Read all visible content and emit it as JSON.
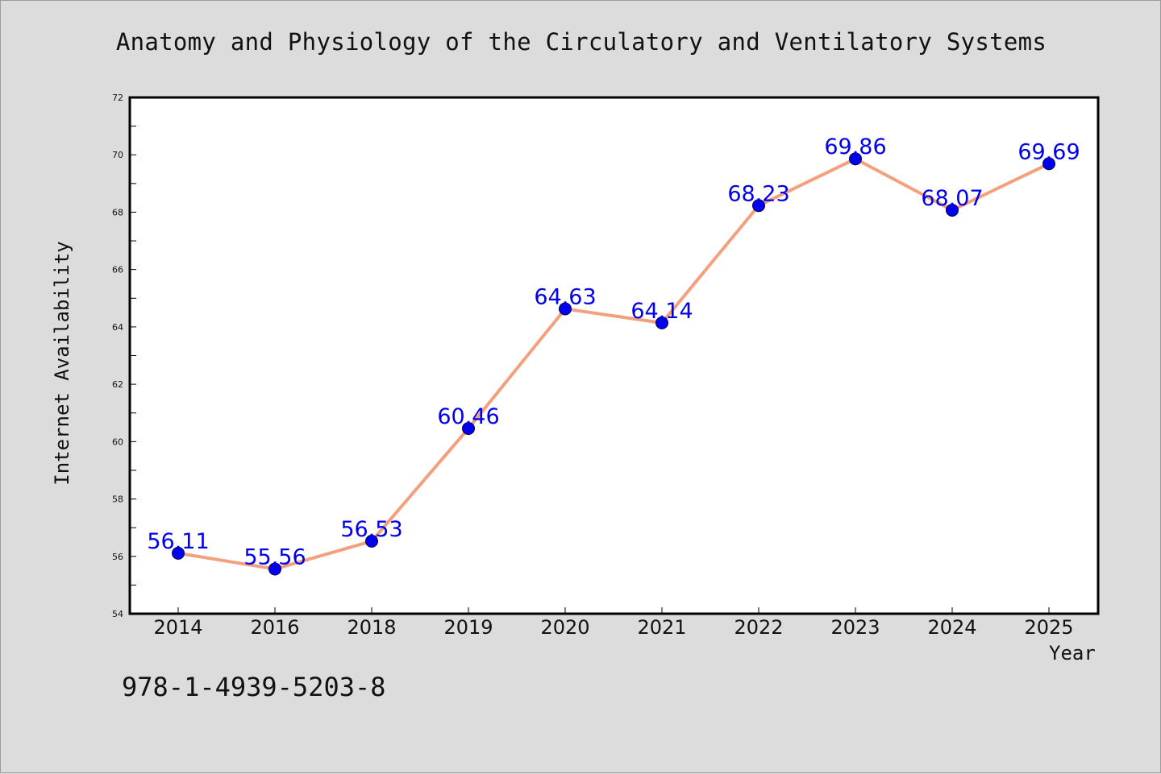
{
  "isbn_text": "978-1-4939-5203-8",
  "chart_data": {
    "type": "line",
    "title": "Anatomy and Physiology of the Circulatory and Ventilatory Systems",
    "xlabel": "Year",
    "ylabel": "Internet Availability",
    "categories": [
      "2014",
      "2016",
      "2018",
      "2019",
      "2020",
      "2021",
      "2022",
      "2023",
      "2024",
      "2025"
    ],
    "values": [
      56.11,
      55.56,
      56.53,
      60.46,
      64.63,
      64.14,
      68.23,
      69.86,
      68.07,
      69.69
    ],
    "data_labels": [
      "56.11",
      "55.56",
      "56.53",
      "60.46",
      "64.63",
      "64.14",
      "68.23",
      "69.86",
      "68.07",
      "69.69"
    ],
    "ylim": [
      54,
      72
    ],
    "yticks": [
      "54",
      "56",
      "58",
      "60",
      "62",
      "64",
      "66",
      "68",
      "70",
      "72"
    ],
    "grid": false,
    "line_color": "#f4a07e",
    "marker_color": "#0000ee",
    "label_color": "#0000ee",
    "background_color": "#dcdcdc",
    "plot_background": "#ffffff"
  }
}
